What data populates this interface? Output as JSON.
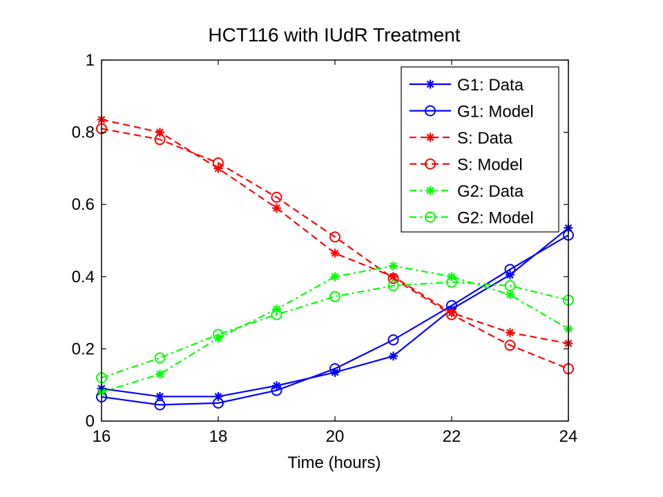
{
  "chart_data": {
    "type": "line",
    "title": "HCT116 with IUdR Treatment",
    "xlabel": "Time (hours)",
    "ylabel": "",
    "xlim": [
      16,
      24
    ],
    "ylim": [
      0,
      1
    ],
    "xticks": [
      16,
      18,
      20,
      22,
      24
    ],
    "yticks": [
      0,
      0.2,
      0.4,
      0.6,
      0.8,
      1
    ],
    "x": [
      16,
      17,
      18,
      19,
      20,
      21,
      22,
      23,
      24
    ],
    "grid": false,
    "legend_position": "top-right",
    "series": [
      {
        "name": "G1: Data",
        "color": "#0000ff",
        "line_style": "solid",
        "marker": "star",
        "values": [
          0.09,
          0.068,
          0.068,
          0.098,
          0.135,
          0.18,
          0.31,
          0.405,
          0.535
        ]
      },
      {
        "name": "G1: Model",
        "color": "#0000ff",
        "line_style": "solid",
        "marker": "circle",
        "values": [
          0.067,
          0.045,
          0.05,
          0.085,
          0.145,
          0.225,
          0.32,
          0.42,
          0.515
        ]
      },
      {
        "name": "S: Data",
        "color": "#ff0000",
        "line_style": "dashed",
        "marker": "star",
        "values": [
          0.835,
          0.8,
          0.7,
          0.59,
          0.465,
          0.4,
          0.3,
          0.245,
          0.215
        ]
      },
      {
        "name": "S: Model",
        "color": "#ff0000",
        "line_style": "dashed",
        "marker": "circle",
        "values": [
          0.81,
          0.78,
          0.715,
          0.62,
          0.51,
          0.395,
          0.295,
          0.21,
          0.145
        ]
      },
      {
        "name": "G2: Data",
        "color": "#00ff00",
        "line_style": "dashdot",
        "marker": "star",
        "values": [
          0.08,
          0.13,
          0.23,
          0.31,
          0.4,
          0.43,
          0.4,
          0.35,
          0.255
        ]
      },
      {
        "name": "G2: Model",
        "color": "#00ff00",
        "line_style": "dashdot",
        "marker": "circle",
        "values": [
          0.12,
          0.175,
          0.24,
          0.295,
          0.345,
          0.375,
          0.385,
          0.375,
          0.335
        ]
      }
    ]
  }
}
